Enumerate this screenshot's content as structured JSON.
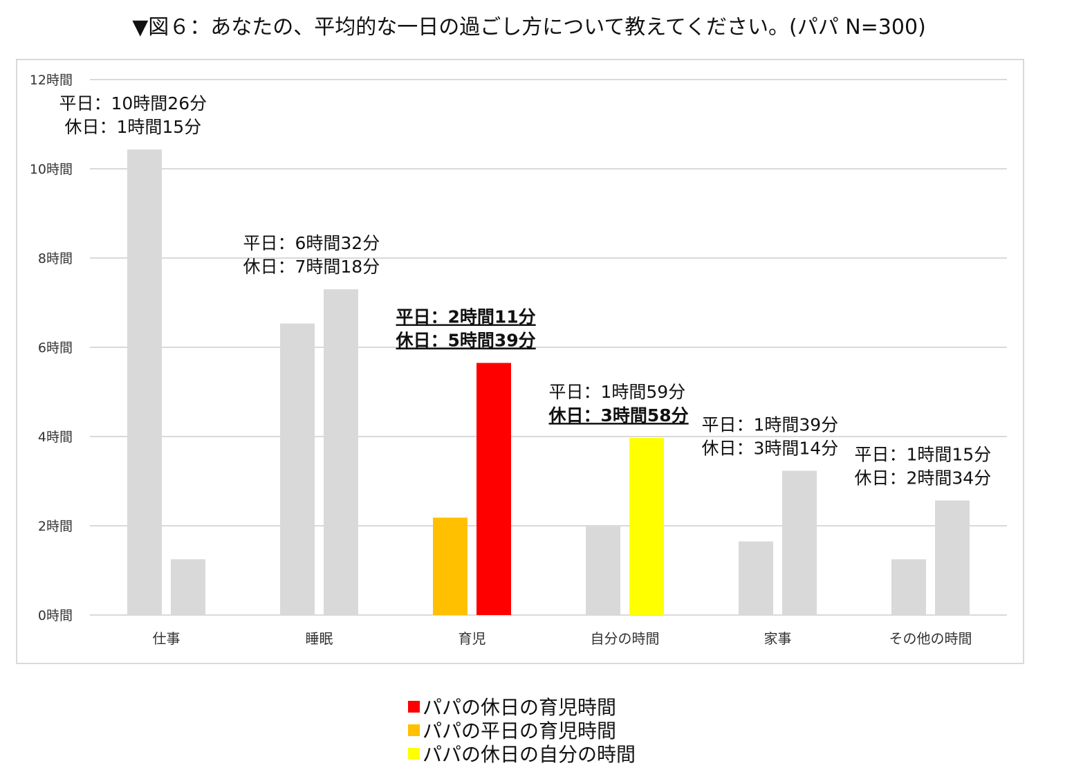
{
  "title": "▼図６：あなたの、平均的な一日の過ごし方について教えてください。(パパ N=300)",
  "chart_data": {
    "type": "bar",
    "categories": [
      "仕事",
      "睡眠",
      "育児",
      "自分の時間",
      "家事",
      "その他の時間"
    ],
    "unit": "hours",
    "ylim": [
      0,
      12
    ],
    "yticks": [
      {
        "value": 0,
        "label": "0時間"
      },
      {
        "value": 2,
        "label": "2時間"
      },
      {
        "value": 4,
        "label": "4時間"
      },
      {
        "value": 6,
        "label": "6時間"
      },
      {
        "value": 8,
        "label": "8時間"
      },
      {
        "value": 10,
        "label": "10時間"
      },
      {
        "value": 12,
        "label": "12時間"
      }
    ],
    "grid": true,
    "series": [
      {
        "key": "weekday",
        "values": [
          10.433,
          6.533,
          2.183,
          1.983,
          1.65,
          1.25
        ]
      },
      {
        "key": "holiday",
        "values": [
          1.25,
          7.3,
          5.65,
          3.967,
          3.233,
          2.567
        ]
      }
    ],
    "bar_colors": {
      "weekday": [
        "#d9d9d9",
        "#d9d9d9",
        "#ffc000",
        "#d9d9d9",
        "#d9d9d9",
        "#d9d9d9"
      ],
      "holiday": [
        "#d9d9d9",
        "#d9d9d9",
        "#ff0000",
        "#ffff00",
        "#d9d9d9",
        "#d9d9d9"
      ]
    },
    "annotations": [
      {
        "weekday": "平日：10時間26分",
        "holiday": "休日：1時間15分",
        "weekday_bold": false,
        "holiday_bold": false
      },
      {
        "weekday": "平日：6時間32分",
        "holiday": "休日：7時間18分",
        "weekday_bold": false,
        "holiday_bold": false
      },
      {
        "weekday": "平日：2時間11分",
        "holiday": "休日：5時間39分",
        "weekday_bold": true,
        "holiday_bold": true
      },
      {
        "weekday": "平日：1時間59分",
        "holiday": "休日：3時間58分",
        "weekday_bold": false,
        "holiday_bold": true
      },
      {
        "weekday": "平日：1時間39分",
        "holiday": "休日：3時間14分",
        "weekday_bold": false,
        "holiday_bold": false
      },
      {
        "weekday": "平日：1時間15分",
        "holiday": "休日：2時間34分",
        "weekday_bold": false,
        "holiday_bold": false
      }
    ]
  },
  "legend": [
    {
      "label": "パパの休日の育児時間",
      "color": "#ff0000"
    },
    {
      "label": "パパの平日の育児時間",
      "color": "#ffc000"
    },
    {
      "label": "パパの休日の自分の時間",
      "color": "#ffff00"
    }
  ]
}
